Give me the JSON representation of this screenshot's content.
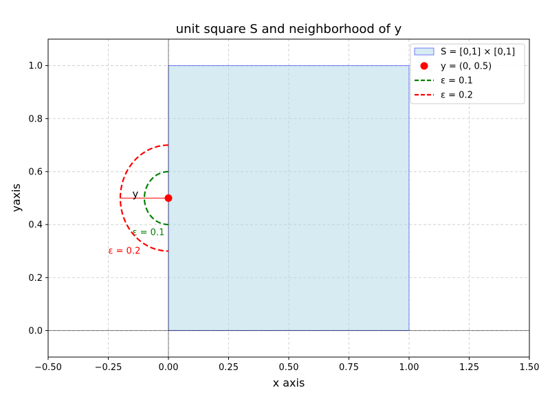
{
  "chart_data": {
    "type": "line",
    "title": "unit square S and neighborhood of y",
    "xlabel": "x axis",
    "ylabel": "yaxis",
    "xlim": [
      -0.5,
      1.5
    ],
    "ylim": [
      -0.1,
      1.1
    ],
    "xticks": [
      -0.5,
      -0.25,
      0.0,
      0.25,
      0.5,
      0.75,
      1.0,
      1.25,
      1.5
    ],
    "xtick_labels": [
      "−0.50",
      "−0.25",
      "0.00",
      "0.25",
      "0.50",
      "0.75",
      "1.00",
      "1.25",
      "1.50"
    ],
    "yticks": [
      0.0,
      0.2,
      0.4,
      0.6,
      0.8,
      1.0
    ],
    "ytick_labels": [
      "0.0",
      "0.2",
      "0.4",
      "0.6",
      "0.8",
      "1.0"
    ],
    "grid": true,
    "legend_position": "top-right",
    "square": {
      "name": "S = [0,1] × [0,1]",
      "x": [
        0,
        1
      ],
      "y": [
        0,
        1
      ],
      "fill": "#add8e6",
      "edge": "#0000ff"
    },
    "point": {
      "name": "y = (0, 0.5)",
      "x": 0,
      "y": 0.5,
      "color": "#ff0000",
      "label": "y"
    },
    "neighborhoods": [
      {
        "name": "ε = 0.1",
        "radius": 0.1,
        "center": [
          0,
          0.5
        ],
        "color": "#008000",
        "label": "ε = 0.1",
        "label_pos": [
          -0.15,
          0.37
        ]
      },
      {
        "name": "ε = 0.2",
        "radius": 0.2,
        "center": [
          0,
          0.5
        ],
        "color": "#ff0000",
        "label": "ε = 0.2",
        "label_pos": [
          -0.25,
          0.3
        ]
      }
    ],
    "radius_line": {
      "from": [
        -0.2,
        0.5
      ],
      "to": [
        0,
        0.5
      ],
      "color": "#ff0000"
    },
    "y_label_pos": [
      -0.15,
      0.5
    ]
  }
}
